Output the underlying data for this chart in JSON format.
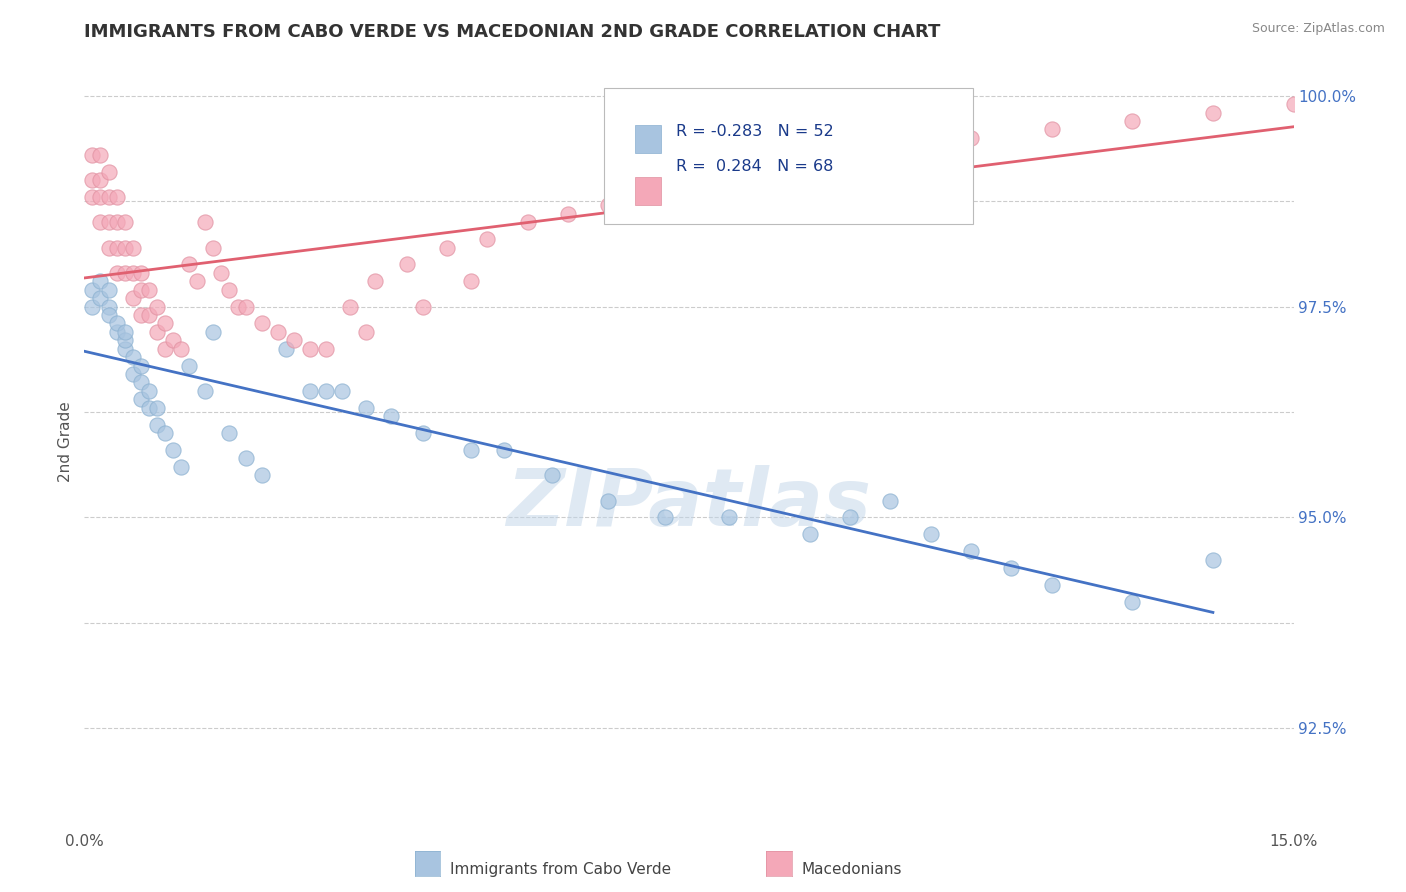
{
  "title": "IMMIGRANTS FROM CABO VERDE VS MACEDONIAN 2ND GRADE CORRELATION CHART",
  "source": "Source: ZipAtlas.com",
  "ylabel": "2nd Grade",
  "xlim": [
    0.0,
    0.15
  ],
  "ylim": [
    0.913,
    1.005
  ],
  "ytick_positions": [
    0.925,
    0.9375,
    0.95,
    0.9625,
    0.975,
    0.9875,
    1.0
  ],
  "ytick_labels": [
    "92.5%",
    "",
    "95.0%",
    "",
    "97.5%",
    "",
    "100.0%"
  ],
  "legend_label1": "Immigrants from Cabo Verde",
  "legend_label2": "Macedonians",
  "r1": -0.283,
  "n1": 52,
  "r2": 0.284,
  "n2": 68,
  "color1": "#a8c4e0",
  "color2": "#f4a8b8",
  "line_color1": "#4472c4",
  "line_color2": "#e06070",
  "watermark": "ZIPatlas",
  "blue_pts_x": [
    0.001,
    0.001,
    0.002,
    0.002,
    0.003,
    0.003,
    0.003,
    0.004,
    0.004,
    0.005,
    0.005,
    0.005,
    0.006,
    0.006,
    0.007,
    0.007,
    0.007,
    0.008,
    0.008,
    0.009,
    0.009,
    0.01,
    0.011,
    0.012,
    0.013,
    0.015,
    0.016,
    0.018,
    0.02,
    0.022,
    0.025,
    0.028,
    0.03,
    0.032,
    0.035,
    0.038,
    0.042,
    0.048,
    0.052,
    0.058,
    0.065,
    0.072,
    0.08,
    0.09,
    0.095,
    0.1,
    0.105,
    0.11,
    0.115,
    0.12,
    0.13,
    0.14
  ],
  "blue_pts_y": [
    0.977,
    0.975,
    0.978,
    0.976,
    0.975,
    0.977,
    0.974,
    0.972,
    0.973,
    0.97,
    0.971,
    0.972,
    0.969,
    0.967,
    0.966,
    0.968,
    0.964,
    0.963,
    0.965,
    0.961,
    0.963,
    0.96,
    0.958,
    0.956,
    0.968,
    0.965,
    0.972,
    0.96,
    0.957,
    0.955,
    0.97,
    0.965,
    0.965,
    0.965,
    0.963,
    0.962,
    0.96,
    0.958,
    0.958,
    0.955,
    0.952,
    0.95,
    0.95,
    0.948,
    0.95,
    0.952,
    0.948,
    0.946,
    0.944,
    0.942,
    0.94,
    0.945
  ],
  "pink_pts_x": [
    0.001,
    0.001,
    0.001,
    0.002,
    0.002,
    0.002,
    0.002,
    0.003,
    0.003,
    0.003,
    0.003,
    0.004,
    0.004,
    0.004,
    0.004,
    0.005,
    0.005,
    0.005,
    0.006,
    0.006,
    0.006,
    0.007,
    0.007,
    0.007,
    0.008,
    0.008,
    0.009,
    0.009,
    0.01,
    0.01,
    0.011,
    0.012,
    0.013,
    0.014,
    0.015,
    0.016,
    0.017,
    0.018,
    0.019,
    0.02,
    0.022,
    0.024,
    0.026,
    0.028,
    0.03,
    0.033,
    0.036,
    0.04,
    0.045,
    0.05,
    0.055,
    0.06,
    0.065,
    0.07,
    0.075,
    0.08,
    0.085,
    0.09,
    0.095,
    0.1,
    0.11,
    0.12,
    0.13,
    0.14,
    0.15,
    0.035,
    0.042,
    0.048
  ],
  "pink_pts_y": [
    0.993,
    0.99,
    0.988,
    0.993,
    0.99,
    0.988,
    0.985,
    0.991,
    0.988,
    0.985,
    0.982,
    0.988,
    0.985,
    0.982,
    0.979,
    0.985,
    0.982,
    0.979,
    0.982,
    0.979,
    0.976,
    0.979,
    0.977,
    0.974,
    0.977,
    0.974,
    0.975,
    0.972,
    0.973,
    0.97,
    0.971,
    0.97,
    0.98,
    0.978,
    0.985,
    0.982,
    0.979,
    0.977,
    0.975,
    0.975,
    0.973,
    0.972,
    0.971,
    0.97,
    0.97,
    0.975,
    0.978,
    0.98,
    0.982,
    0.983,
    0.985,
    0.986,
    0.987,
    0.988,
    0.989,
    0.99,
    0.991,
    0.992,
    0.993,
    0.994,
    0.995,
    0.996,
    0.997,
    0.998,
    0.999,
    0.972,
    0.975,
    0.978
  ]
}
